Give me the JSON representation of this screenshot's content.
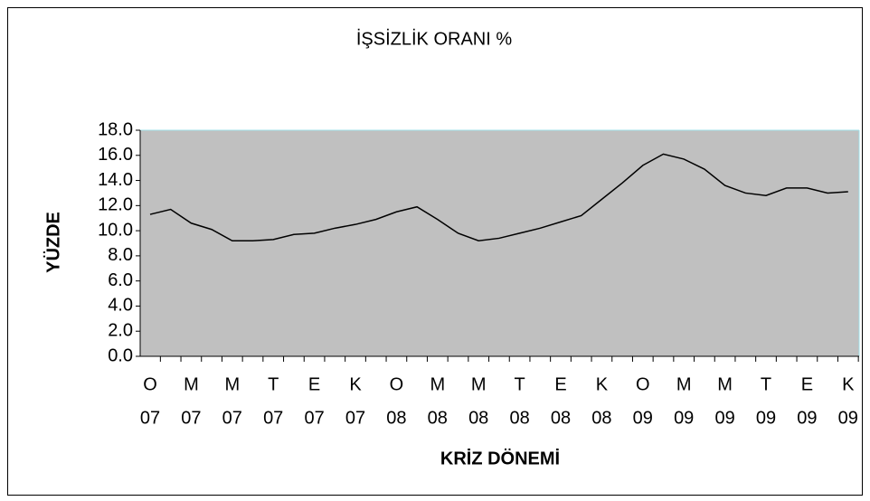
{
  "chart_data": {
    "type": "line",
    "title": "İŞSİZLİK ORANI %",
    "x_label": "KRİZ DÖNEMİ",
    "y_label": "YÜZDE",
    "categories": [
      [
        "O",
        "07"
      ],
      null,
      [
        "M",
        "07"
      ],
      null,
      [
        "M",
        "07"
      ],
      null,
      [
        "T",
        "07"
      ],
      null,
      [
        "E",
        "07"
      ],
      null,
      [
        "K",
        "07"
      ],
      null,
      [
        "O",
        "08"
      ],
      null,
      [
        "M",
        "08"
      ],
      null,
      [
        "M",
        "08"
      ],
      null,
      [
        "T",
        "08"
      ],
      null,
      [
        "E",
        "08"
      ],
      null,
      [
        "K",
        "08"
      ],
      null,
      [
        "O",
        "09"
      ],
      null,
      [
        "M",
        "09"
      ],
      null,
      [
        "M",
        "09"
      ],
      null,
      [
        "T",
        "09"
      ],
      null,
      [
        "E",
        "09"
      ],
      null,
      [
        "K",
        "09"
      ]
    ],
    "series": [
      {
        "name": "İşsizlik oranı",
        "color": "#000000",
        "values": [
          11.3,
          11.7,
          10.6,
          10.1,
          9.2,
          9.2,
          9.3,
          9.7,
          9.8,
          10.2,
          10.5,
          10.9,
          11.5,
          11.9,
          10.9,
          9.8,
          9.2,
          9.4,
          9.8,
          10.2,
          10.7,
          11.2,
          12.5,
          13.8,
          15.2,
          16.1,
          15.7,
          14.9,
          13.6,
          13.0,
          12.8,
          13.4,
          13.4,
          13.0,
          13.1
        ]
      }
    ],
    "ylim": [
      0,
      18
    ],
    "yticks": [
      {
        "value": 0,
        "label": "0.0"
      },
      {
        "value": 2,
        "label": "2.0"
      },
      {
        "value": 4,
        "label": "4.0"
      },
      {
        "value": 6,
        "label": "6.0"
      },
      {
        "value": 8,
        "label": "8.0"
      },
      {
        "value": 10,
        "label": "10.0"
      },
      {
        "value": 12,
        "label": "12.0"
      },
      {
        "value": 14,
        "label": "14.0"
      },
      {
        "value": 16,
        "label": "16.0"
      },
      {
        "value": 18,
        "label": "18.0"
      }
    ],
    "plot_background": "#c0c0c0",
    "grid": false
  }
}
